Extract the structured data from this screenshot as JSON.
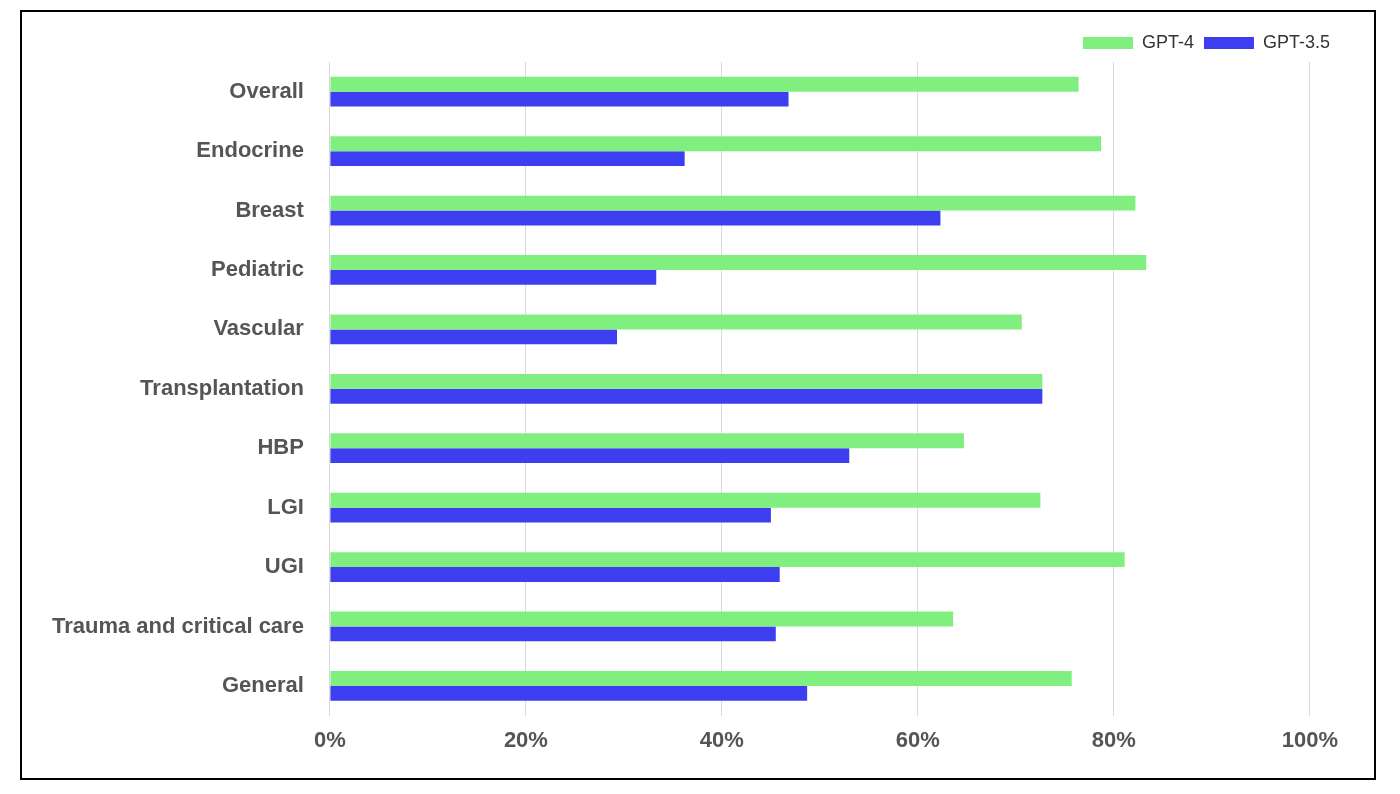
{
  "chart_data": {
    "type": "bar",
    "orientation": "horizontal",
    "categories": [
      "Overall",
      "Endocrine",
      "Breast",
      "Pediatric",
      "Vascular",
      "Transplantation",
      "HBP",
      "LGI",
      "UGI",
      "Trauma and critical care",
      "General"
    ],
    "series": [
      {
        "name": "GPT-4",
        "color": "#80ef80",
        "values": [
          76.4,
          78.7,
          82.2,
          83.3,
          70.6,
          72.7,
          64.7,
          72.5,
          81.1,
          63.6,
          75.7
        ]
      },
      {
        "name": "GPT-3.5",
        "color": "#3c3ef0",
        "values": [
          46.8,
          36.2,
          62.3,
          33.3,
          29.3,
          72.7,
          53.0,
          45.0,
          45.9,
          45.5,
          48.7
        ]
      }
    ],
    "xlim": [
      0,
      100
    ],
    "xticks": [
      {
        "value": 0,
        "label": "0%"
      },
      {
        "value": 20,
        "label": "20%"
      },
      {
        "value": 40,
        "label": "40%"
      },
      {
        "value": 60,
        "label": "60%"
      },
      {
        "value": 80,
        "label": "80%"
      },
      {
        "value": 100,
        "label": "100%"
      }
    ],
    "grid": true,
    "legend": "upper right"
  }
}
